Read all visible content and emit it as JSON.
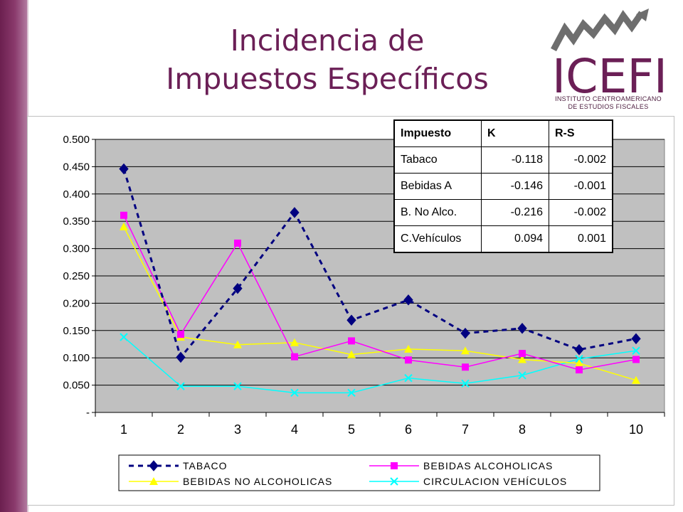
{
  "slide": {
    "title_line1": "Incidencia de",
    "title_line2": "Impuestos Específicos"
  },
  "logo": {
    "name": "ICEFI",
    "subtitle_line1": "INSTITUTO CENTROAMERICANO",
    "subtitle_line2": "DE ESTUDIOS FISCALES",
    "color": "#6b1f56"
  },
  "table": {
    "headers": [
      "Impuesto",
      "K",
      "R-S"
    ],
    "rows": [
      [
        "Tabaco",
        "-0.118",
        "-0.002"
      ],
      [
        "Bebidas A",
        "-0.146",
        "-0.001"
      ],
      [
        "B. No Alco.",
        "-0.216",
        "-0.002"
      ],
      [
        "C.Vehículos",
        "0.094",
        "0.001"
      ]
    ]
  },
  "chart_data": {
    "type": "line",
    "title": "",
    "xlabel": "",
    "ylabel": "",
    "x": [
      1,
      2,
      3,
      4,
      5,
      6,
      7,
      8,
      9,
      10
    ],
    "ylim": [
      0,
      0.5
    ],
    "yticks": [
      "-",
      "0.050",
      "0.100",
      "0.150",
      "0.200",
      "0.250",
      "0.300",
      "0.350",
      "0.400",
      "0.450",
      "0.500"
    ],
    "plot_background": "#c0c0c0",
    "grid": "horizontal",
    "legend_position": "bottom",
    "series": [
      {
        "name": "TABACO",
        "color": "#000080",
        "marker": "diamond",
        "dashed": true,
        "values": [
          0.446,
          0.101,
          0.227,
          0.366,
          0.169,
          0.206,
          0.145,
          0.154,
          0.115,
          0.135
        ]
      },
      {
        "name": "BEBIDAS ALCOHOLICAS",
        "color": "#ff00ff",
        "marker": "square",
        "dashed": false,
        "values": [
          0.361,
          0.143,
          0.31,
          0.102,
          0.131,
          0.096,
          0.083,
          0.108,
          0.078,
          0.097
        ]
      },
      {
        "name": "BEBIDAS NO ALCOHOLICAS",
        "color": "#ffff00",
        "marker": "triangle",
        "dashed": false,
        "values": [
          0.34,
          0.138,
          0.124,
          0.128,
          0.106,
          0.116,
          0.113,
          0.097,
          0.09,
          0.059
        ]
      },
      {
        "name": "CIRCULACION VEHÍCULOS",
        "color": "#00ffff",
        "marker": "x",
        "dashed": false,
        "values": [
          0.138,
          0.048,
          0.048,
          0.036,
          0.036,
          0.063,
          0.053,
          0.068,
          0.098,
          0.113
        ]
      }
    ]
  }
}
